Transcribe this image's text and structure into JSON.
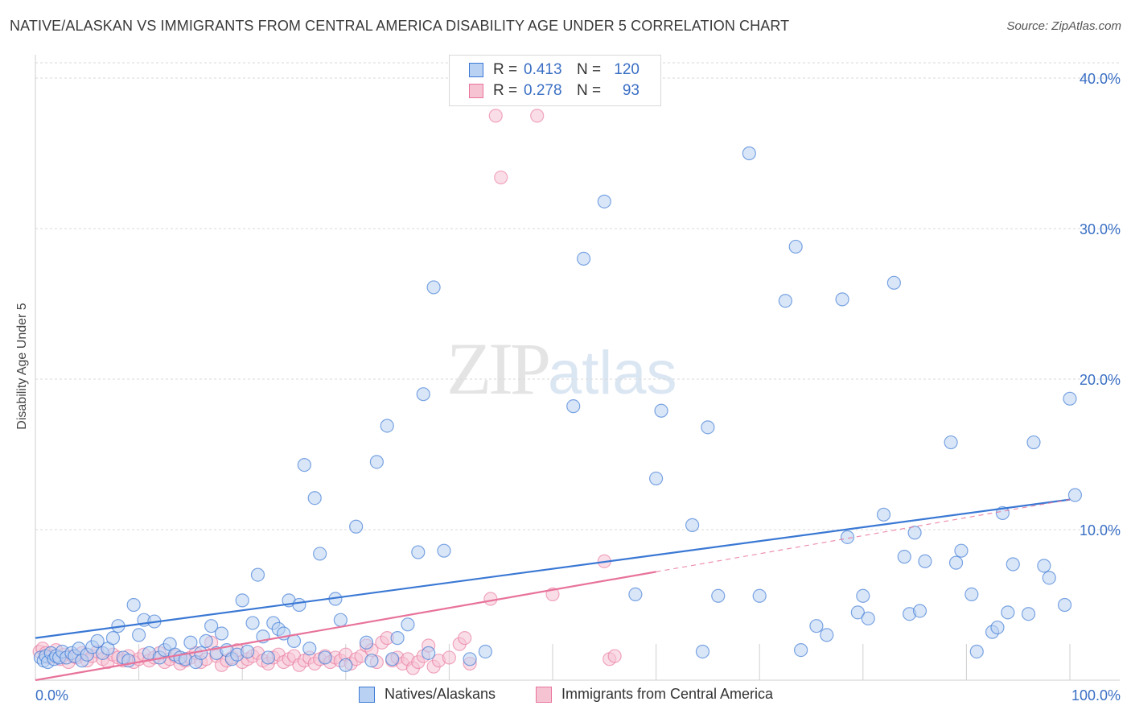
{
  "title": "NATIVE/ALASKAN VS IMMIGRANTS FROM CENTRAL AMERICA DISABILITY AGE UNDER 5 CORRELATION CHART",
  "source": "Source: ZipAtlas.com",
  "watermark": {
    "zip": "ZIP",
    "atlas": "atlas"
  },
  "colors": {
    "blue": "#3a78d4",
    "blue_fill": "#b9d1f2",
    "pink": "#e8739a",
    "pink_fill": "#f6c3d3",
    "axis_text": "#3a6fc4",
    "grid": "#d9d9d9"
  },
  "legend": {
    "rows": [
      {
        "r_label": "R =",
        "r_value": "0.413",
        "n_label": "N =",
        "n_value": "120"
      },
      {
        "r_label": "R =",
        "r_value": "0.278",
        "n_label": "N =",
        "n_value": "93"
      }
    ]
  },
  "chart_data": {
    "type": "scatter",
    "title": "NATIVE/ALASKAN VS IMMIGRANTS FROM CENTRAL AMERICA DISABILITY AGE UNDER 5 CORRELATION CHART",
    "xlabel": "",
    "ylabel": "Disability Age Under 5",
    "xlim": [
      0,
      100
    ],
    "ylim": [
      0,
      40
    ],
    "x_tick_labels": [
      "0.0%",
      "100.0%"
    ],
    "y_ticks": [
      10,
      20,
      30,
      40
    ],
    "y_tick_labels": [
      "10.0%",
      "20.0%",
      "30.0%",
      "40.0%"
    ],
    "grid": true,
    "legend_position": "top-center",
    "series": [
      {
        "name": "Natives/Alaskans",
        "color": "#3a78d4",
        "trend": [
          [
            0,
            2.8
          ],
          [
            100,
            12.0
          ]
        ],
        "points": [
          [
            0.5,
            1.5
          ],
          [
            0.8,
            1.3
          ],
          [
            1.0,
            1.6
          ],
          [
            1.2,
            1.2
          ],
          [
            1.5,
            1.8
          ],
          [
            1.8,
            1.4
          ],
          [
            2.0,
            1.6
          ],
          [
            2.3,
            1.5
          ],
          [
            2.6,
            1.9
          ],
          [
            3.0,
            1.5
          ],
          [
            3.5,
            1.8
          ],
          [
            3.8,
            1.6
          ],
          [
            4.2,
            2.1
          ],
          [
            4.5,
            1.3
          ],
          [
            5.0,
            1.7
          ],
          [
            5.5,
            2.2
          ],
          [
            6.0,
            2.6
          ],
          [
            6.5,
            1.8
          ],
          [
            7.0,
            2.1
          ],
          [
            7.5,
            2.8
          ],
          [
            8.0,
            3.6
          ],
          [
            8.5,
            1.5
          ],
          [
            9.0,
            1.3
          ],
          [
            9.5,
            5.0
          ],
          [
            10.0,
            3.0
          ],
          [
            10.5,
            4.0
          ],
          [
            11.0,
            1.8
          ],
          [
            11.5,
            3.9
          ],
          [
            12.0,
            1.5
          ],
          [
            12.5,
            2.0
          ],
          [
            13.0,
            2.4
          ],
          [
            13.5,
            1.7
          ],
          [
            14.0,
            1.5
          ],
          [
            14.5,
            1.4
          ],
          [
            15.0,
            2.5
          ],
          [
            15.5,
            1.2
          ],
          [
            16.0,
            1.8
          ],
          [
            16.5,
            2.6
          ],
          [
            17.0,
            3.6
          ],
          [
            17.5,
            1.8
          ],
          [
            18.0,
            3.1
          ],
          [
            18.5,
            2.0
          ],
          [
            19.0,
            1.4
          ],
          [
            19.5,
            1.7
          ],
          [
            20.0,
            5.3
          ],
          [
            20.5,
            1.9
          ],
          [
            21.0,
            3.8
          ],
          [
            21.5,
            7.0
          ],
          [
            22.0,
            2.9
          ],
          [
            22.5,
            1.5
          ],
          [
            23.0,
            3.8
          ],
          [
            23.5,
            3.4
          ],
          [
            24.0,
            3.1
          ],
          [
            24.5,
            5.3
          ],
          [
            25.0,
            2.6
          ],
          [
            25.5,
            5.0
          ],
          [
            26.0,
            14.3
          ],
          [
            26.5,
            2.1
          ],
          [
            27.0,
            12.1
          ],
          [
            27.5,
            8.4
          ],
          [
            28.0,
            1.5
          ],
          [
            29.0,
            5.4
          ],
          [
            29.5,
            4.0
          ],
          [
            30.0,
            1.0
          ],
          [
            31.0,
            10.2
          ],
          [
            32.0,
            2.5
          ],
          [
            32.5,
            1.3
          ],
          [
            33.0,
            14.5
          ],
          [
            34.0,
            16.9
          ],
          [
            34.5,
            1.4
          ],
          [
            35.0,
            2.8
          ],
          [
            36.0,
            3.7
          ],
          [
            37.0,
            8.5
          ],
          [
            37.5,
            19.0
          ],
          [
            38.0,
            1.8
          ],
          [
            38.5,
            26.1
          ],
          [
            39.5,
            8.6
          ],
          [
            42.0,
            1.4
          ],
          [
            43.5,
            1.9
          ],
          [
            52.0,
            18.2
          ],
          [
            53.0,
            28.0
          ],
          [
            55.0,
            31.8
          ],
          [
            58.0,
            5.7
          ],
          [
            60.0,
            13.4
          ],
          [
            60.5,
            17.9
          ],
          [
            63.5,
            10.3
          ],
          [
            64.5,
            1.9
          ],
          [
            65.0,
            16.8
          ],
          [
            66.0,
            5.6
          ],
          [
            69.0,
            35.0
          ],
          [
            70.0,
            5.6
          ],
          [
            72.5,
            25.2
          ],
          [
            73.5,
            28.8
          ],
          [
            74.0,
            2.0
          ],
          [
            75.5,
            3.6
          ],
          [
            76.5,
            3.0
          ],
          [
            78.0,
            25.3
          ],
          [
            78.5,
            9.5
          ],
          [
            79.5,
            4.5
          ],
          [
            80.0,
            5.6
          ],
          [
            80.5,
            4.1
          ],
          [
            82.0,
            11.0
          ],
          [
            83.0,
            26.4
          ],
          [
            84.0,
            8.2
          ],
          [
            84.5,
            4.4
          ],
          [
            85.0,
            9.8
          ],
          [
            85.5,
            4.6
          ],
          [
            86.0,
            7.9
          ],
          [
            88.5,
            15.8
          ],
          [
            89.0,
            7.8
          ],
          [
            89.5,
            8.6
          ],
          [
            90.5,
            5.7
          ],
          [
            91.0,
            1.9
          ],
          [
            92.5,
            3.2
          ],
          [
            93.0,
            3.5
          ],
          [
            93.5,
            11.1
          ],
          [
            94.0,
            4.5
          ],
          [
            94.5,
            7.7
          ],
          [
            96.0,
            4.4
          ],
          [
            96.5,
            15.8
          ],
          [
            97.5,
            7.6
          ],
          [
            98.0,
            6.8
          ],
          [
            99.5,
            5.0
          ],
          [
            100.0,
            18.7
          ],
          [
            100.5,
            12.3
          ]
        ]
      },
      {
        "name": "Immigrants from Central America",
        "color": "#e8739a",
        "trend": [
          [
            0,
            0.0
          ],
          [
            60,
            7.2
          ]
        ],
        "trend_dashed": [
          [
            60,
            7.2
          ],
          [
            100,
            12.0
          ]
        ],
        "points": [
          [
            0.4,
            1.9
          ],
          [
            0.7,
            2.1
          ],
          [
            1.0,
            1.8
          ],
          [
            1.3,
            1.5
          ],
          [
            1.6,
            1.6
          ],
          [
            2.0,
            2.0
          ],
          [
            2.4,
            1.4
          ],
          [
            2.8,
            1.7
          ],
          [
            3.2,
            1.2
          ],
          [
            3.6,
            1.6
          ],
          [
            4.0,
            1.5
          ],
          [
            4.5,
            1.8
          ],
          [
            5.0,
            1.3
          ],
          [
            5.5,
            1.6
          ],
          [
            6.0,
            1.9
          ],
          [
            6.5,
            1.4
          ],
          [
            7.0,
            1.2
          ],
          [
            7.5,
            1.7
          ],
          [
            8.0,
            1.5
          ],
          [
            8.5,
            1.3
          ],
          [
            9.0,
            1.6
          ],
          [
            9.5,
            1.2
          ],
          [
            10.0,
            1.4
          ],
          [
            10.5,
            1.7
          ],
          [
            11.0,
            1.3
          ],
          [
            11.5,
            1.5
          ],
          [
            12.0,
            1.8
          ],
          [
            12.5,
            1.2
          ],
          [
            13.0,
            1.4
          ],
          [
            13.5,
            1.6
          ],
          [
            14.0,
            1.1
          ],
          [
            14.5,
            1.3
          ],
          [
            15.0,
            1.5
          ],
          [
            15.5,
            1.8
          ],
          [
            16.0,
            1.2
          ],
          [
            16.5,
            1.4
          ],
          [
            17.0,
            2.5
          ],
          [
            17.5,
            1.6
          ],
          [
            18.0,
            1.0
          ],
          [
            18.5,
            1.3
          ],
          [
            19.0,
            1.5
          ],
          [
            19.5,
            2.0
          ],
          [
            20.0,
            1.2
          ],
          [
            20.5,
            1.4
          ],
          [
            21.0,
            1.6
          ],
          [
            21.5,
            1.8
          ],
          [
            22.0,
            1.3
          ],
          [
            22.5,
            1.1
          ],
          [
            23.0,
            1.5
          ],
          [
            23.5,
            1.7
          ],
          [
            24.0,
            1.2
          ],
          [
            24.5,
            1.4
          ],
          [
            25.0,
            1.6
          ],
          [
            25.5,
            1.0
          ],
          [
            26.0,
            1.3
          ],
          [
            26.5,
            1.5
          ],
          [
            27.0,
            1.1
          ],
          [
            27.5,
            1.4
          ],
          [
            28.0,
            1.6
          ],
          [
            28.5,
            1.2
          ],
          [
            29.0,
            1.5
          ],
          [
            29.5,
            1.3
          ],
          [
            30.0,
            1.7
          ],
          [
            30.5,
            1.1
          ],
          [
            31.0,
            1.4
          ],
          [
            31.5,
            1.6
          ],
          [
            32.0,
            2.3
          ],
          [
            32.5,
            2.0
          ],
          [
            33.0,
            1.2
          ],
          [
            33.5,
            2.5
          ],
          [
            34.0,
            2.8
          ],
          [
            34.5,
            1.3
          ],
          [
            35.0,
            1.5
          ],
          [
            35.5,
            1.1
          ],
          [
            36.0,
            1.4
          ],
          [
            36.5,
            0.8
          ],
          [
            37.0,
            1.2
          ],
          [
            37.5,
            1.6
          ],
          [
            38.0,
            2.3
          ],
          [
            38.5,
            0.9
          ],
          [
            39.0,
            1.3
          ],
          [
            40.0,
            1.5
          ],
          [
            41.0,
            2.4
          ],
          [
            41.5,
            2.8
          ],
          [
            42.0,
            1.1
          ],
          [
            44.0,
            5.4
          ],
          [
            44.5,
            37.5
          ],
          [
            45.0,
            33.4
          ],
          [
            48.5,
            37.5
          ],
          [
            50.0,
            5.7
          ],
          [
            55.0,
            7.9
          ],
          [
            55.5,
            1.4
          ],
          [
            56.0,
            1.6
          ]
        ]
      }
    ]
  },
  "bottom_legend": [
    {
      "label": "Natives/Alaskans"
    },
    {
      "label": "Immigrants from Central America"
    }
  ]
}
